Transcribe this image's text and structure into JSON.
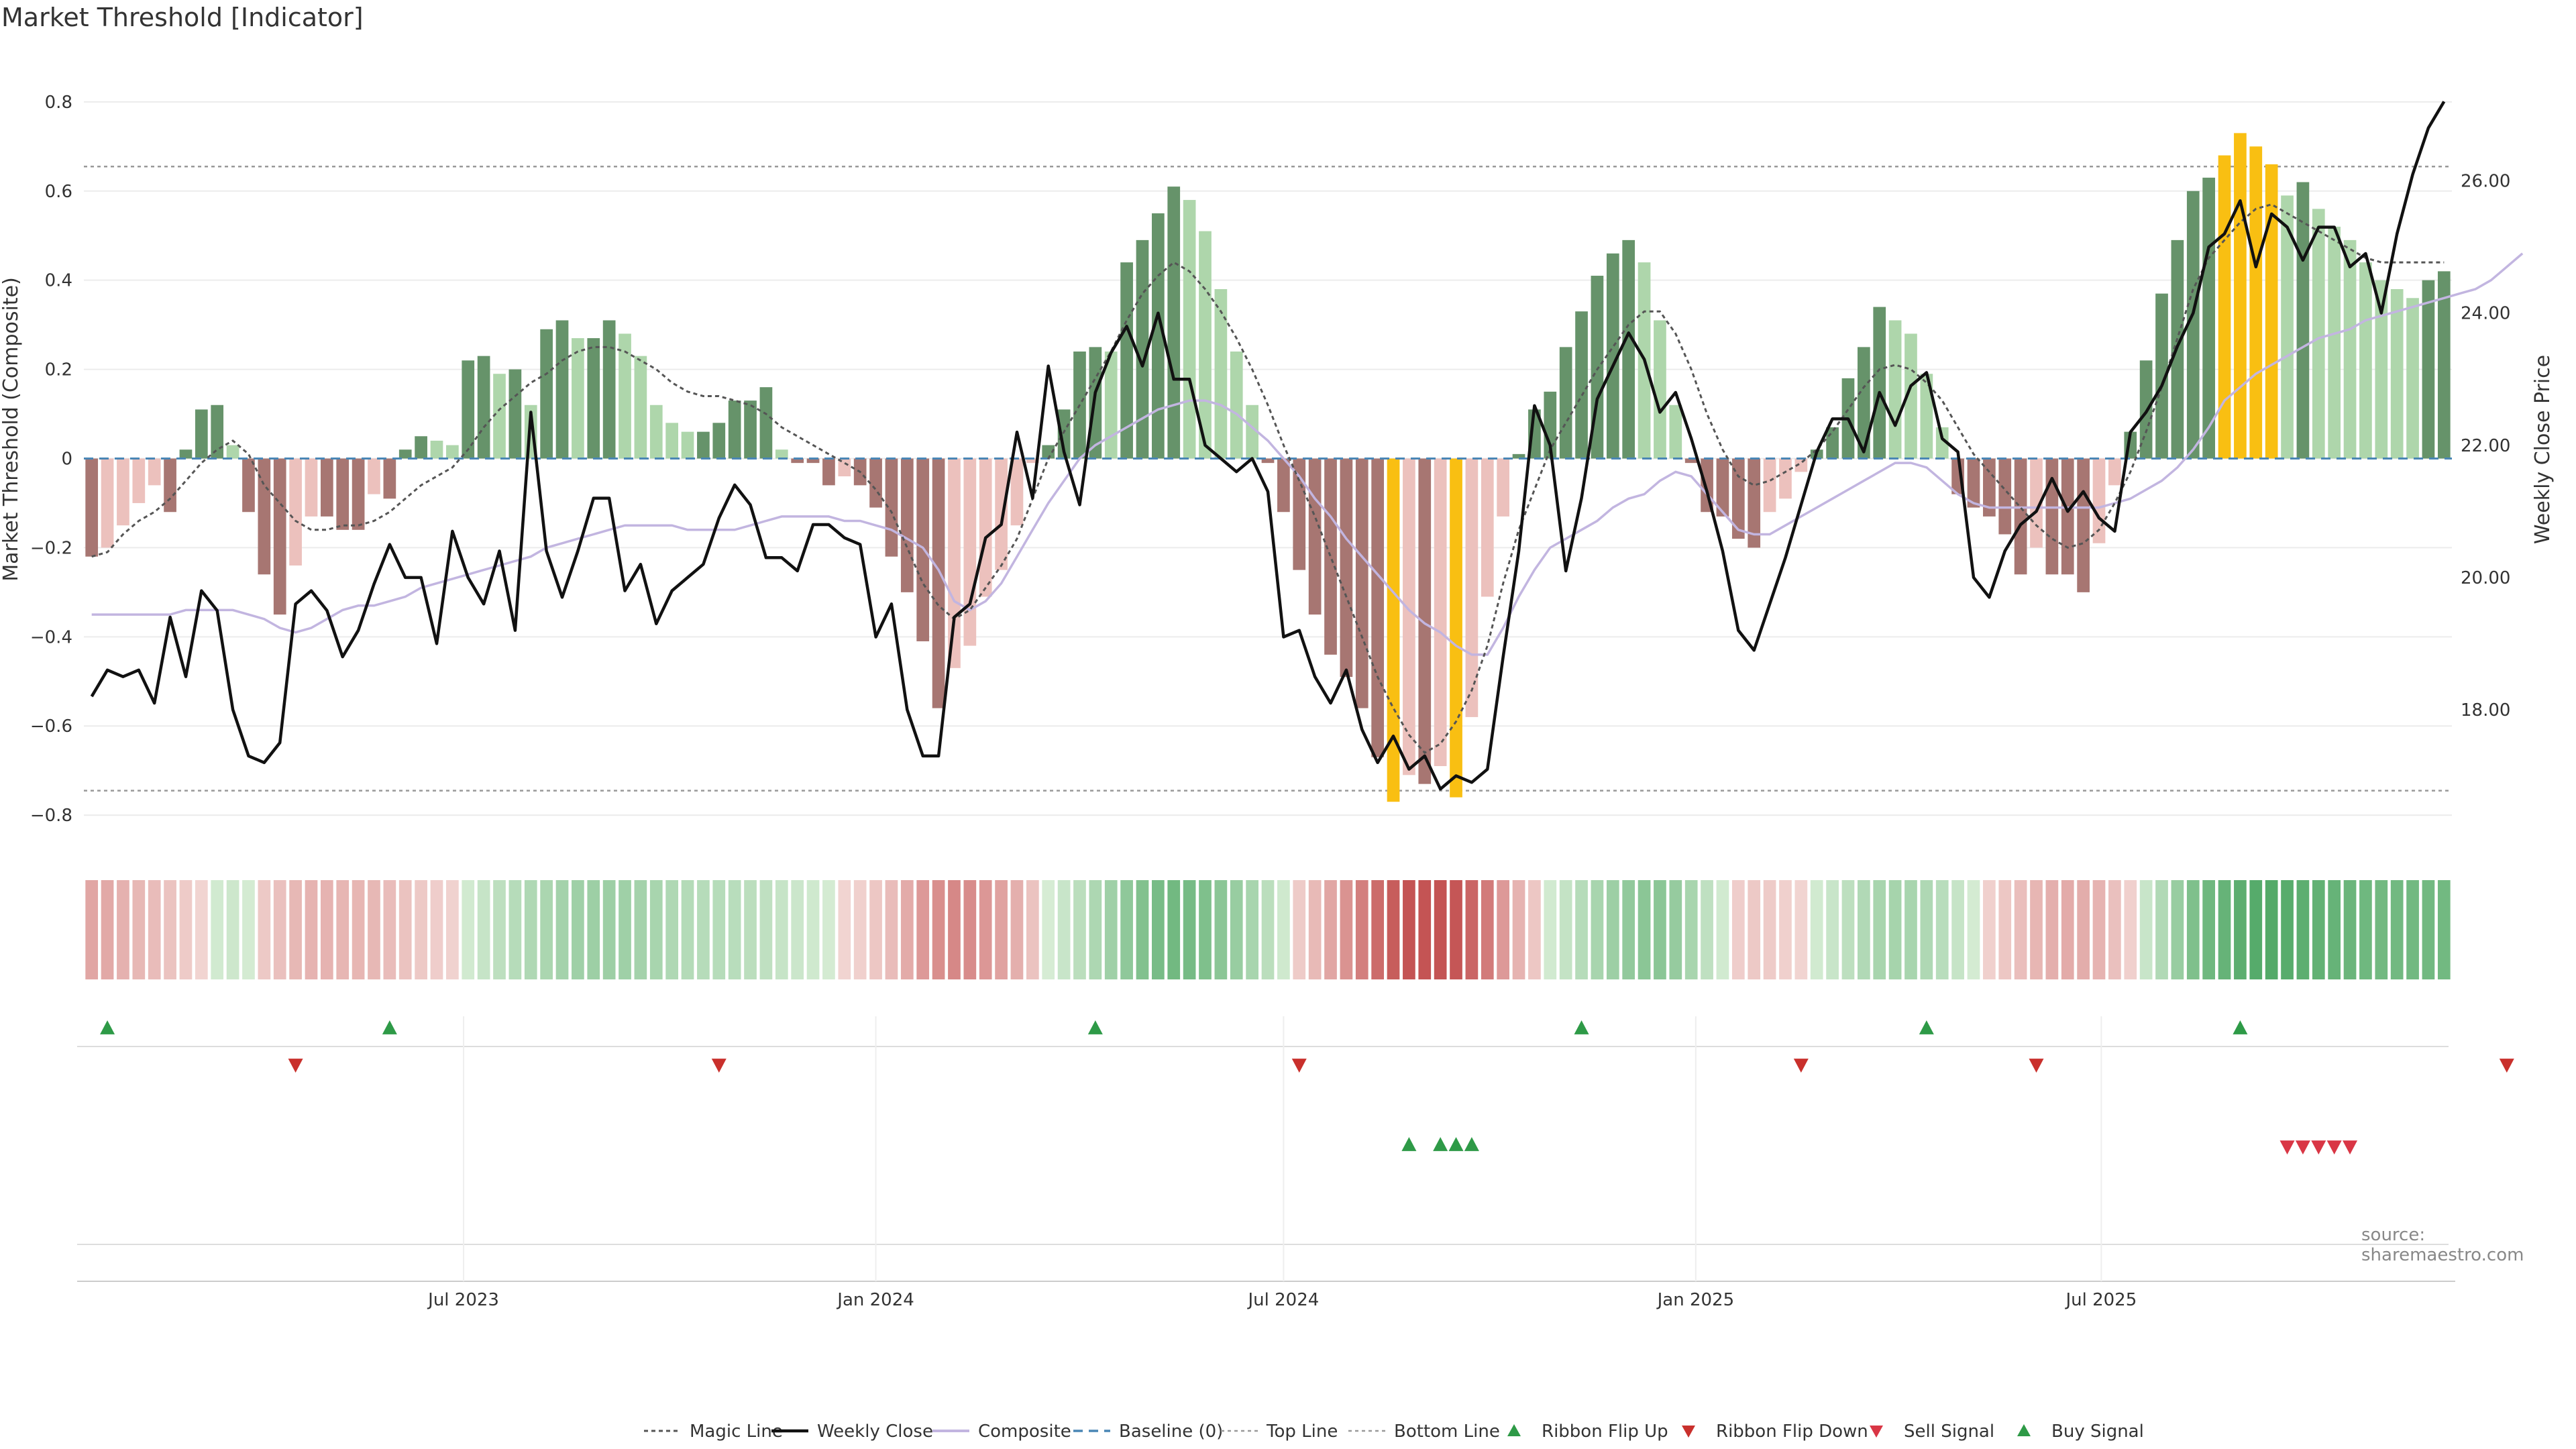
{
  "title": "Market Threshold [Indicator]",
  "source_note": "source: sharemaestro.com",
  "colors": {
    "strong_green": "#66936a",
    "light_green": "#aed6ab",
    "dark_red": "#a77672",
    "light_red": "#ecc1bd",
    "extreme": "#f9bf12",
    "close": "#111111",
    "composite": "#c2b5e0",
    "magic": "#555555",
    "baseline": "#4a86b5"
  },
  "chart_data": {
    "type": "bar",
    "x_start": "2023-01-16",
    "x_step_days": 7,
    "x_ticks": [
      "Jul 2023",
      "Jan 2024",
      "Jul 2024",
      "Jan 2025",
      "Jul 2025"
    ],
    "ylabel_left": "Market Threshold (Composite)",
    "ylabel_right": "Weekly Close Price",
    "ylim_left": [
      -0.86,
      0.86
    ],
    "ylim_right": [
      16.0,
      27.6
    ],
    "left_ticks": [
      "0.8",
      "0.6",
      "0.4",
      "0.2",
      "0",
      "−0.2",
      "−0.4",
      "−0.6",
      "−0.8"
    ],
    "right_ticks": [
      "26.00",
      "24.00",
      "22.00",
      "20.00",
      "18.00"
    ],
    "top_line": 0.655,
    "bottom_line": -0.745,
    "series": [
      {
        "name": "Market Threshold (Composite)",
        "kind": "bar",
        "values": [
          -0.22,
          -0.2,
          -0.15,
          -0.1,
          -0.06,
          -0.12,
          0.02,
          0.11,
          0.12,
          0.03,
          -0.12,
          -0.26,
          -0.35,
          -0.24,
          -0.13,
          -0.13,
          -0.16,
          -0.16,
          -0.08,
          -0.09,
          0.02,
          0.05,
          0.04,
          0.03,
          0.22,
          0.23,
          0.19,
          0.2,
          0.12,
          0.29,
          0.31,
          0.27,
          0.27,
          0.31,
          0.28,
          0.23,
          0.12,
          0.08,
          0.06,
          0.06,
          0.08,
          0.13,
          0.13,
          0.16,
          0.02,
          -0.01,
          -0.01,
          -0.06,
          -0.04,
          -0.06,
          -0.11,
          -0.22,
          -0.3,
          -0.41,
          -0.56,
          -0.47,
          -0.42,
          -0.31,
          -0.25,
          -0.15,
          -0.01,
          0.03,
          0.11,
          0.24,
          0.25,
          0.24,
          0.44,
          0.49,
          0.55,
          0.61,
          0.58,
          0.51,
          0.38,
          0.24,
          0.12,
          -0.01,
          -0.12,
          -0.25,
          -0.35,
          -0.44,
          -0.49,
          -0.56,
          -0.67,
          -0.77,
          -0.71,
          -0.73,
          -0.69,
          -0.76,
          -0.58,
          -0.31,
          -0.13,
          0.01,
          0.11,
          0.15,
          0.25,
          0.33,
          0.41,
          0.46,
          0.49,
          0.44,
          0.31,
          0.12,
          -0.01,
          -0.12,
          -0.13,
          -0.18,
          -0.2,
          -0.12,
          -0.09,
          -0.03,
          0.02,
          0.07,
          0.18,
          0.25,
          0.34,
          0.31,
          0.28,
          0.19,
          0.07,
          -0.08,
          -0.11,
          -0.13,
          -0.17,
          -0.26,
          -0.2,
          -0.26,
          -0.26,
          -0.3,
          -0.19,
          -0.06,
          0.06,
          0.22,
          0.37,
          0.49,
          0.6,
          0.63,
          0.68,
          0.73,
          0.7,
          0.66,
          0.59,
          0.62,
          0.56,
          0.52,
          0.49,
          0.44,
          0.4,
          0.38,
          0.36,
          0.4,
          0.42
        ]
      },
      {
        "name": "Weekly Close",
        "kind": "line",
        "values": [
          18.2,
          18.6,
          18.5,
          18.6,
          18.1,
          19.4,
          18.5,
          19.8,
          19.5,
          18.0,
          17.3,
          17.2,
          17.5,
          19.6,
          19.8,
          19.5,
          18.8,
          19.2,
          19.9,
          20.5,
          20.0,
          20.0,
          19.0,
          20.7,
          20.0,
          19.6,
          20.4,
          19.2,
          22.5,
          20.4,
          19.7,
          20.4,
          21.2,
          21.2,
          19.8,
          20.2,
          19.3,
          19.8,
          20.0,
          20.2,
          20.9,
          21.4,
          21.1,
          20.3,
          20.3,
          20.1,
          20.8,
          20.8,
          20.6,
          20.5,
          19.1,
          19.6,
          18.0,
          17.3,
          17.3,
          19.4,
          19.6,
          20.6,
          20.8,
          22.2,
          21.2,
          23.2,
          21.9,
          21.1,
          22.8,
          23.4,
          23.8,
          23.2,
          24.0,
          23.0,
          23.0,
          22.0,
          21.8,
          21.6,
          21.8,
          21.3,
          19.1,
          19.2,
          18.5,
          18.1,
          18.6,
          17.7,
          17.2,
          17.6,
          17.1,
          17.3,
          16.8,
          17.0,
          16.9,
          17.1,
          18.8,
          20.4,
          22.6,
          22.0,
          20.1,
          21.2,
          22.7,
          23.2,
          23.7,
          23.3,
          22.5,
          22.8,
          22.1,
          21.3,
          20.4,
          19.2,
          18.9,
          19.6,
          20.3,
          21.1,
          21.9,
          22.4,
          22.4,
          21.9,
          22.8,
          22.3,
          22.9,
          23.1,
          22.1,
          21.9,
          20.0,
          19.7,
          20.4,
          20.8,
          21.0,
          21.5,
          21.0,
          21.3,
          20.9,
          20.7,
          22.2,
          22.5,
          22.9,
          23.5,
          24.0,
          25.0,
          25.2,
          25.7,
          24.7,
          25.5,
          25.3,
          24.8,
          25.3,
          25.3,
          24.7,
          24.9,
          24.0,
          25.2,
          26.1,
          26.8,
          27.2
        ]
      },
      {
        "name": "Composite",
        "kind": "line",
        "scale": "left",
        "values": [
          -0.35,
          -0.35,
          -0.35,
          -0.35,
          -0.35,
          -0.35,
          -0.34,
          -0.34,
          -0.34,
          -0.34,
          -0.35,
          -0.36,
          -0.38,
          -0.39,
          -0.38,
          -0.36,
          -0.34,
          -0.33,
          -0.33,
          -0.32,
          -0.31,
          -0.29,
          -0.28,
          -0.27,
          -0.26,
          -0.25,
          -0.24,
          -0.23,
          -0.22,
          -0.2,
          -0.19,
          -0.18,
          -0.17,
          -0.16,
          -0.15,
          -0.15,
          -0.15,
          -0.15,
          -0.16,
          -0.16,
          -0.16,
          -0.16,
          -0.15,
          -0.14,
          -0.13,
          -0.13,
          -0.13,
          -0.13,
          -0.14,
          -0.14,
          -0.15,
          -0.16,
          -0.18,
          -0.2,
          -0.25,
          -0.32,
          -0.34,
          -0.32,
          -0.28,
          -0.22,
          -0.16,
          -0.1,
          -0.05,
          0.0,
          0.03,
          0.05,
          0.07,
          0.09,
          0.11,
          0.12,
          0.13,
          0.13,
          0.12,
          0.1,
          0.07,
          0.04,
          0.0,
          -0.04,
          -0.09,
          -0.13,
          -0.18,
          -0.22,
          -0.26,
          -0.3,
          -0.34,
          -0.37,
          -0.39,
          -0.42,
          -0.44,
          -0.44,
          -0.38,
          -0.31,
          -0.25,
          -0.2,
          -0.18,
          -0.16,
          -0.14,
          -0.11,
          -0.09,
          -0.08,
          -0.05,
          -0.03,
          -0.04,
          -0.08,
          -0.12,
          -0.16,
          -0.17,
          -0.17,
          -0.15,
          -0.13,
          -0.11,
          -0.09,
          -0.07,
          -0.05,
          -0.03,
          -0.01,
          -0.01,
          -0.02,
          -0.05,
          -0.08,
          -0.1,
          -0.11,
          -0.11,
          -0.11,
          -0.11,
          -0.11,
          -0.11,
          -0.11,
          -0.11,
          -0.1,
          -0.09,
          -0.07,
          -0.05,
          -0.02,
          0.02,
          0.07,
          0.13,
          0.16,
          0.19,
          0.21,
          0.23,
          0.25,
          0.27,
          0.28,
          0.29,
          0.31,
          0.32,
          0.33,
          0.34,
          0.35,
          0.36,
          0.37,
          0.38,
          0.4,
          0.43,
          0.46
        ]
      },
      {
        "name": "Magic Line",
        "kind": "line",
        "scale": "left",
        "values": [
          -0.22,
          -0.21,
          -0.17,
          -0.14,
          -0.12,
          -0.09,
          -0.05,
          -0.01,
          0.02,
          0.04,
          0.01,
          -0.06,
          -0.1,
          -0.14,
          -0.16,
          -0.16,
          -0.15,
          -0.15,
          -0.14,
          -0.12,
          -0.09,
          -0.06,
          -0.04,
          -0.02,
          0.02,
          0.07,
          0.11,
          0.14,
          0.17,
          0.19,
          0.22,
          0.24,
          0.25,
          0.25,
          0.24,
          0.22,
          0.2,
          0.17,
          0.15,
          0.14,
          0.14,
          0.13,
          0.12,
          0.1,
          0.07,
          0.05,
          0.03,
          0.01,
          -0.01,
          -0.03,
          -0.07,
          -0.12,
          -0.2,
          -0.28,
          -0.33,
          -0.36,
          -0.34,
          -0.29,
          -0.24,
          -0.18,
          -0.09,
          0.0,
          0.06,
          0.12,
          0.18,
          0.24,
          0.31,
          0.37,
          0.41,
          0.44,
          0.42,
          0.38,
          0.33,
          0.27,
          0.2,
          0.12,
          0.03,
          -0.05,
          -0.13,
          -0.22,
          -0.31,
          -0.4,
          -0.49,
          -0.56,
          -0.62,
          -0.66,
          -0.64,
          -0.59,
          -0.52,
          -0.42,
          -0.28,
          -0.16,
          -0.07,
          0.02,
          0.08,
          0.14,
          0.2,
          0.25,
          0.3,
          0.33,
          0.33,
          0.28,
          0.2,
          0.1,
          0.02,
          -0.04,
          -0.06,
          -0.05,
          -0.03,
          -0.01,
          0.02,
          0.06,
          0.11,
          0.16,
          0.2,
          0.21,
          0.2,
          0.17,
          0.13,
          0.07,
          0.01,
          -0.03,
          -0.07,
          -0.11,
          -0.15,
          -0.18,
          -0.2,
          -0.19,
          -0.16,
          -0.1,
          -0.03,
          0.06,
          0.16,
          0.27,
          0.38,
          0.45,
          0.49,
          0.53,
          0.56,
          0.57,
          0.55,
          0.53,
          0.51,
          0.49,
          0.47,
          0.45,
          0.44,
          0.44,
          0.44,
          0.44,
          0.44
        ]
      },
      {
        "name": "Baseline (0)",
        "kind": "line",
        "value": 0
      },
      {
        "name": "Top Line",
        "kind": "line",
        "value": 0.655
      },
      {
        "name": "Bottom Line",
        "kind": "line",
        "value": -0.745
      }
    ],
    "signals": {
      "ribbon_flip_up": [
        1,
        19,
        64,
        95,
        117,
        137
      ],
      "ribbon_flip_down": [
        13,
        40,
        77,
        109,
        124,
        154
      ],
      "buy_signal": [
        84,
        86,
        87,
        88
      ],
      "sell_signal": [
        140,
        141,
        142,
        143,
        144
      ]
    },
    "legend": [
      "Magic Line",
      "Weekly Close",
      "Composite",
      "Baseline (0)",
      "Top Line",
      "Bottom Line",
      "Ribbon Flip Up",
      "Ribbon Flip Down",
      "Sell Signal",
      "Buy Signal"
    ],
    "legend_position": "bottom-center"
  }
}
